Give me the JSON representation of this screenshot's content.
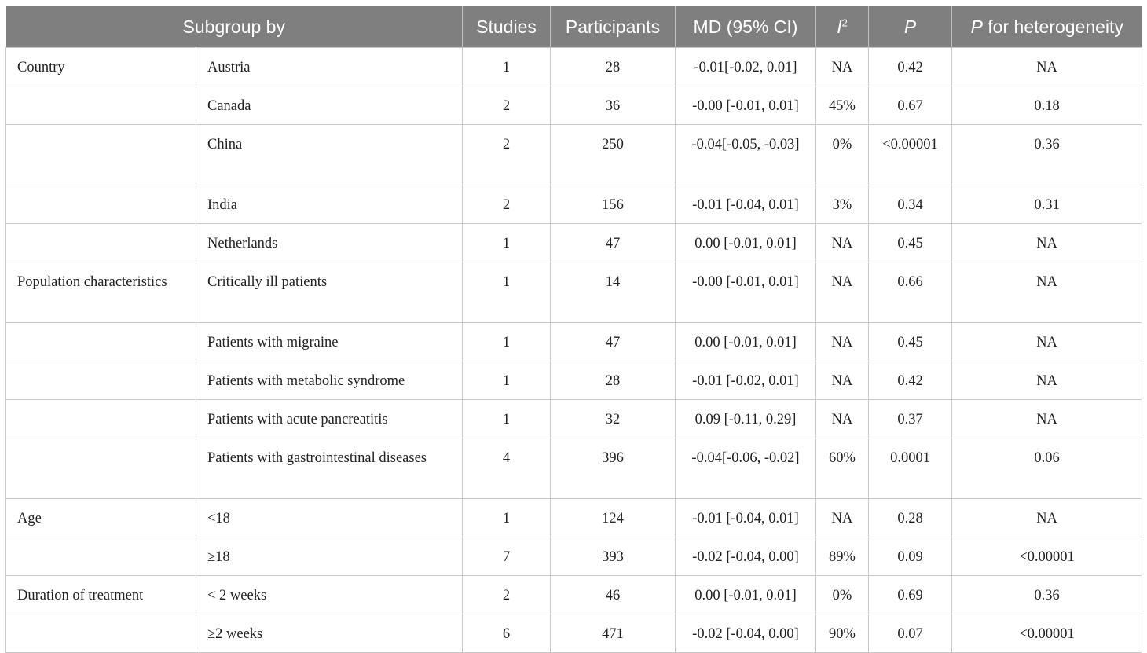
{
  "headers": {
    "subgroup": "Subgroup by",
    "studies": "Studies",
    "participants": "Participants",
    "md": "MD (95% CI)",
    "i2_letter": "I",
    "i2_sup": "2",
    "p": "P",
    "p_het_italic": "P",
    "p_het_rest": " for heterogeneity"
  },
  "rows": [
    {
      "group": "Country",
      "sub": "Austria",
      "studies": "1",
      "participants": "28",
      "md": "-0.01[-0.02, 0.01]",
      "i2": "NA",
      "p": "0.42",
      "phet": "NA"
    },
    {
      "group": "",
      "sub": "Canada",
      "studies": "2",
      "participants": "36",
      "md": "-0.00 [-0.01, 0.01]",
      "i2": "45%",
      "p": "0.67",
      "phet": "0.18"
    },
    {
      "group": "",
      "sub": "China",
      "studies": "2",
      "participants": "250",
      "md": "-0.04[-0.05, -0.03]",
      "i2": "0%",
      "p": "<0.00001",
      "phet": "0.36"
    },
    {
      "group": "",
      "sub": "India",
      "studies": "2",
      "participants": "156",
      "md": "-0.01 [-0.04, 0.01]",
      "i2": "3%",
      "p": "0.34",
      "phet": "0.31"
    },
    {
      "group": "",
      "sub": "Netherlands",
      "studies": "1",
      "participants": "47",
      "md": "0.00 [-0.01, 0.01]",
      "i2": "NA",
      "p": "0.45",
      "phet": "NA"
    },
    {
      "group": "Population characteristics",
      "sub": "Critically ill patients",
      "studies": "1",
      "participants": "14",
      "md": "-0.00 [-0.01, 0.01]",
      "i2": "NA",
      "p": "0.66",
      "phet": "NA"
    },
    {
      "group": "",
      "sub": "Patients with migraine",
      "studies": "1",
      "participants": "47",
      "md": "0.00 [-0.01, 0.01]",
      "i2": "NA",
      "p": "0.45",
      "phet": "NA"
    },
    {
      "group": "",
      "sub": "Patients with metabolic syndrome",
      "studies": "1",
      "participants": "28",
      "md": "-0.01 [-0.02, 0.01]",
      "i2": "NA",
      "p": "0.42",
      "phet": "NA"
    },
    {
      "group": "",
      "sub": "Patients with acute pancreatitis",
      "studies": "1",
      "participants": "32",
      "md": "0.09 [-0.11, 0.29]",
      "i2": "NA",
      "p": "0.37",
      "phet": "NA"
    },
    {
      "group": "",
      "sub": "Patients with gastrointestinal diseases",
      "studies": "4",
      "participants": "396",
      "md": "-0.04[-0.06, -0.02]",
      "i2": "60%",
      "p": "0.0001",
      "phet": "0.06"
    },
    {
      "group": "Age",
      "sub": "<18",
      "studies": "1",
      "participants": "124",
      "md": "-0.01 [-0.04, 0.01]",
      "i2": "NA",
      "p": "0.28",
      "phet": "NA"
    },
    {
      "group": "",
      "sub": "≥18",
      "studies": "7",
      "participants": "393",
      "md": "-0.02 [-0.04, 0.00]",
      "i2": "89%",
      "p": "0.09",
      "phet": "<0.00001"
    },
    {
      "group": "Duration of treatment",
      "sub": "< 2 weeks",
      "studies": "2",
      "participants": "46",
      "md": "0.00 [-0.01, 0.01]",
      "i2": "0%",
      "p": "0.69",
      "phet": "0.36"
    },
    {
      "group": "",
      "sub": "≥2 weeks",
      "studies": "6",
      "participants": "471",
      "md": "-0.02 [-0.04, 0.00]",
      "i2": "90%",
      "p": "0.07",
      "phet": "<0.00001"
    }
  ]
}
